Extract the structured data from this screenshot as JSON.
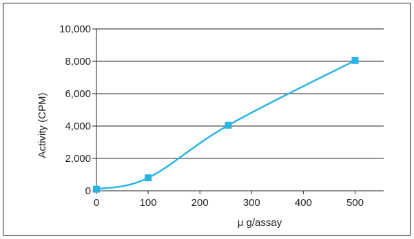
{
  "chart_data": {
    "type": "line",
    "title": "",
    "xlabel": "μ g/assay",
    "ylabel": "Activity (CPM)",
    "xlim": [
      0,
      550
    ],
    "ylim": [
      0,
      10000
    ],
    "x_ticks": [
      0,
      100,
      200,
      300,
      400,
      500
    ],
    "y_ticks": [
      0,
      2000,
      4000,
      6000,
      8000,
      10000
    ],
    "x_tick_labels": [
      "0",
      "100",
      "200",
      "300",
      "400",
      "500"
    ],
    "y_tick_labels": [
      "0",
      "2,000",
      "4,000",
      "6,000",
      "8,000",
      "10,000"
    ],
    "grid": "horizontal",
    "series": [
      {
        "x": [
          0,
          100,
          255,
          500
        ],
        "y": [
          100,
          800,
          4050,
          8050
        ]
      }
    ],
    "colors": {
      "line": "#2bb5e6",
      "marker": "#2bb5e6",
      "axis": "#231f20",
      "grid": "#231f20"
    }
  }
}
